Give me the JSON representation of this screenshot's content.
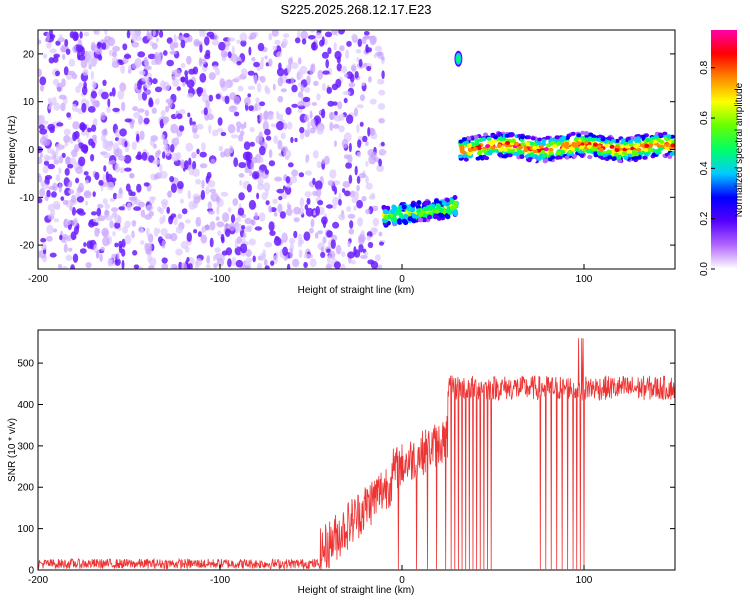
{
  "title": "S225.2025.268.12.17.E23",
  "chart_data": [
    {
      "type": "heatmap",
      "name": "spectrogram",
      "xlabel": "Height of straight line (km)",
      "ylabel": "Frequency (Hz)",
      "xlim": [
        -200,
        150
      ],
      "ylim": [
        -25,
        25
      ],
      "xticks": [
        -200,
        -100,
        0,
        100
      ],
      "yticks": [
        -20,
        -10,
        0,
        10,
        20
      ],
      "colorbar": {
        "label": "Normalized spectral amplitude",
        "range": [
          0,
          0.95
        ],
        "ticks": [
          "0.0",
          "0.2",
          "0.4",
          "0.6",
          "0.8"
        ],
        "colors": [
          "#ffffff",
          "#b266ff",
          "#5500ff",
          "#0000ff",
          "#00ccff",
          "#00ff66",
          "#66ff00",
          "#ffff00",
          "#ff8800",
          "#ff0000",
          "#ff00aa"
        ]
      },
      "features": [
        {
          "region": "noise",
          "x": [
            -200,
            -10
          ],
          "y": [
            -25,
            25
          ],
          "amplitude": 0.12
        },
        {
          "region": "early-echo",
          "x": [
            -10,
            30
          ],
          "freq_start": -14,
          "freq_end": -12,
          "amplitude": 0.5
        },
        {
          "region": "isolated-spot",
          "x": 31,
          "freq": 19,
          "amplitude": 0.5
        },
        {
          "region": "main-echo",
          "x": [
            32,
            150
          ],
          "freq": 0.5,
          "amplitude": 0.75
        }
      ]
    },
    {
      "type": "line",
      "name": "snr",
      "xlabel": "Height of straight line (km)",
      "ylabel": "SNR (10 * v/v)",
      "xlim": [
        -200,
        150
      ],
      "ylim": [
        0,
        580
      ],
      "xticks": [
        -200,
        -100,
        0,
        100
      ],
      "yticks": [
        0,
        100,
        200,
        300,
        400,
        500
      ],
      "color": "#ee3333",
      "segments": [
        {
          "x": [
            -200,
            -45
          ],
          "baseline": 15,
          "noise": 12
        },
        {
          "x": [
            -45,
            -5
          ],
          "baseline_start": 40,
          "baseline_end": 220,
          "noise": 60
        },
        {
          "x": [
            -5,
            25
          ],
          "baseline_start": 240,
          "baseline_end": 320,
          "noise": 55
        },
        {
          "x": [
            25,
            150
          ],
          "baseline": 440,
          "noise": 30
        }
      ],
      "dropouts": [
        -2,
        8,
        14,
        19,
        24,
        27,
        29,
        31,
        33,
        35,
        37,
        39,
        41,
        43,
        45,
        47,
        49,
        76,
        79,
        82,
        85,
        88,
        91,
        94,
        96,
        98,
        100
      ]
    }
  ]
}
